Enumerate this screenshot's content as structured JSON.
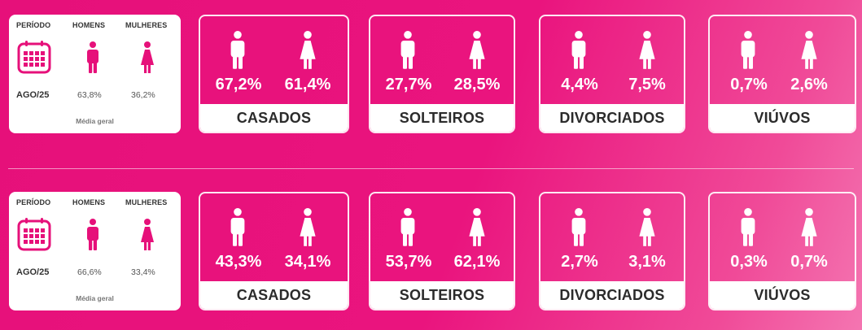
{
  "colors": {
    "accent": "#e6107a",
    "card_bg": "#ffffff",
    "text_dark": "#2b2b2b"
  },
  "icons": {
    "calendar": "calendar-icon",
    "man": "man-icon",
    "woman": "woman-icon"
  },
  "panels": [
    {
      "info": {
        "period_header": "PERÍODO",
        "men_header": "HOMENS",
        "women_header": "MULHERES",
        "period_value": "AGO/25",
        "men_value": "63,8%",
        "women_value": "36,2%",
        "average_label": "Média geral"
      },
      "stats": [
        {
          "label": "CASADOS",
          "men": "67,2%",
          "women": "61,4%"
        },
        {
          "label": "SOLTEIROS",
          "men": "27,7%",
          "women": "28,5%"
        },
        {
          "label": "DIVORCIADOS",
          "men": "4,4%",
          "women": "7,5%"
        },
        {
          "label": "VIÚVOS",
          "men": "0,7%",
          "women": "2,6%"
        }
      ]
    },
    {
      "info": {
        "period_header": "PERÍODO",
        "men_header": "HOMENS",
        "women_header": "MULHERES",
        "period_value": "AGO/25",
        "men_value": "66,6%",
        "women_value": "33,4%",
        "average_label": "Média geral"
      },
      "stats": [
        {
          "label": "CASADOS",
          "men": "43,3%",
          "women": "34,1%"
        },
        {
          "label": "SOLTEIROS",
          "men": "53,7%",
          "women": "62,1%"
        },
        {
          "label": "DIVORCIADOS",
          "men": "2,7%",
          "women": "3,1%"
        },
        {
          "label": "VIÚVOS",
          "men": "0,3%",
          "women": "0,7%"
        }
      ]
    }
  ]
}
